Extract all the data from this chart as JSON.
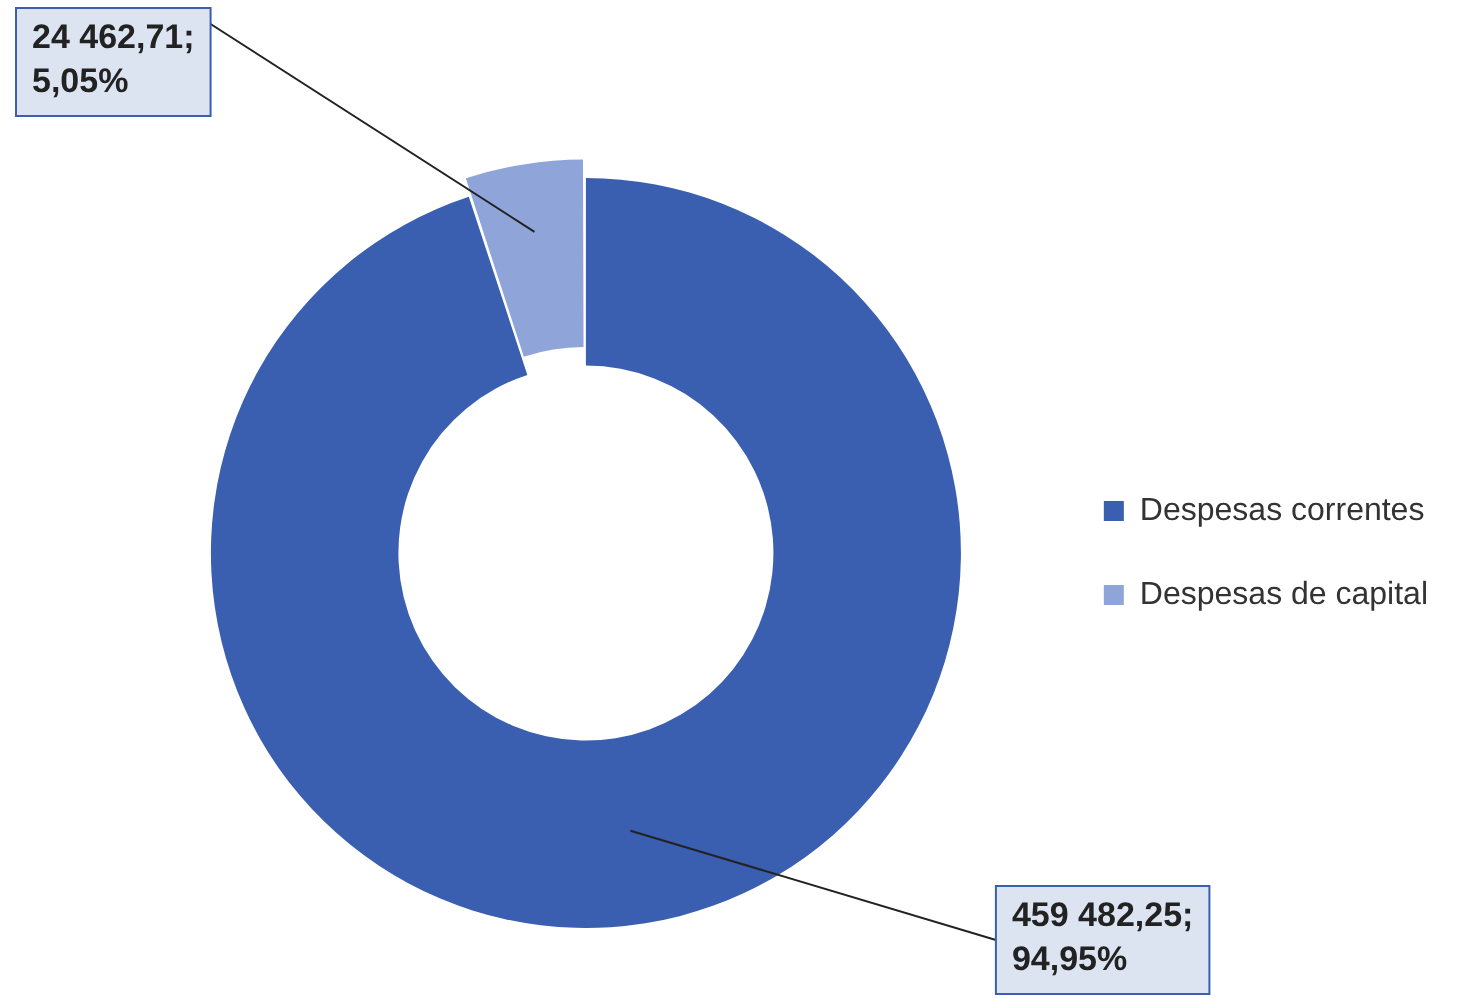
{
  "chart_data": {
    "type": "donut",
    "categories": [
      "Despesas correntes",
      "Despesas de capital"
    ],
    "values": [
      459482.25,
      24462.71
    ],
    "colors": [
      "#3a5fb0",
      "#8fa5da"
    ],
    "value_labels": [
      "459 482,25;\n94,95%",
      "24 462,71;\n5,05%"
    ],
    "legend": "right"
  }
}
